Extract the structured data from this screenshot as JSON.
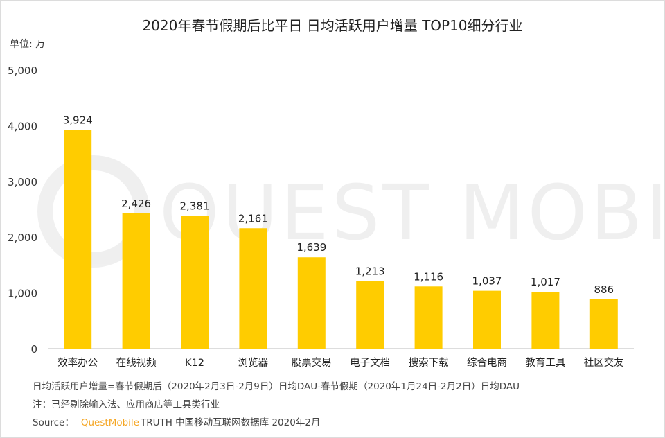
{
  "chart_data": {
    "type": "bar",
    "title": "2020年春节假期后比平日 日均活跃用户增量 TOP10细分行业",
    "unit_label": "单位: 万",
    "categories": [
      "效率办公",
      "在线视频",
      "K12",
      "浏览器",
      "股票交易",
      "电子文档",
      "搜索下载",
      "综合电商",
      "教育工具",
      "社区交友"
    ],
    "values": [
      3924,
      2426,
      2381,
      2161,
      1639,
      1213,
      1116,
      1037,
      1017,
      886
    ],
    "data_labels": [
      "3,924",
      "2,426",
      "2,381",
      "2,161",
      "1,639",
      "1,213",
      "1,116",
      "1,037",
      "1,017",
      "886"
    ],
    "ylim": [
      0,
      5000
    ],
    "yticks": [
      "0",
      "1,000",
      "2,000",
      "3,000",
      "4,000",
      "5,000"
    ],
    "grid": false,
    "legend": "none",
    "bar_color": "#FFCC00",
    "xlabel": "",
    "ylabel": ""
  },
  "notes": {
    "definition": "日均活跃用户增量=春节假期后（2020年2月3日-2月9日）日均DAU-春节假期（2020年1月24日-2月2日）日均DAU",
    "note": "注：已经剔除输入法、应用商店等工具类行业",
    "source_prefix": "Source：",
    "source_brand": "QuestMobile",
    "source_rest": "TRUTH 中国移动互联网数据库 2020年2月",
    "brand_color": "#F5A623"
  },
  "watermark": "QUEST MOBILE"
}
